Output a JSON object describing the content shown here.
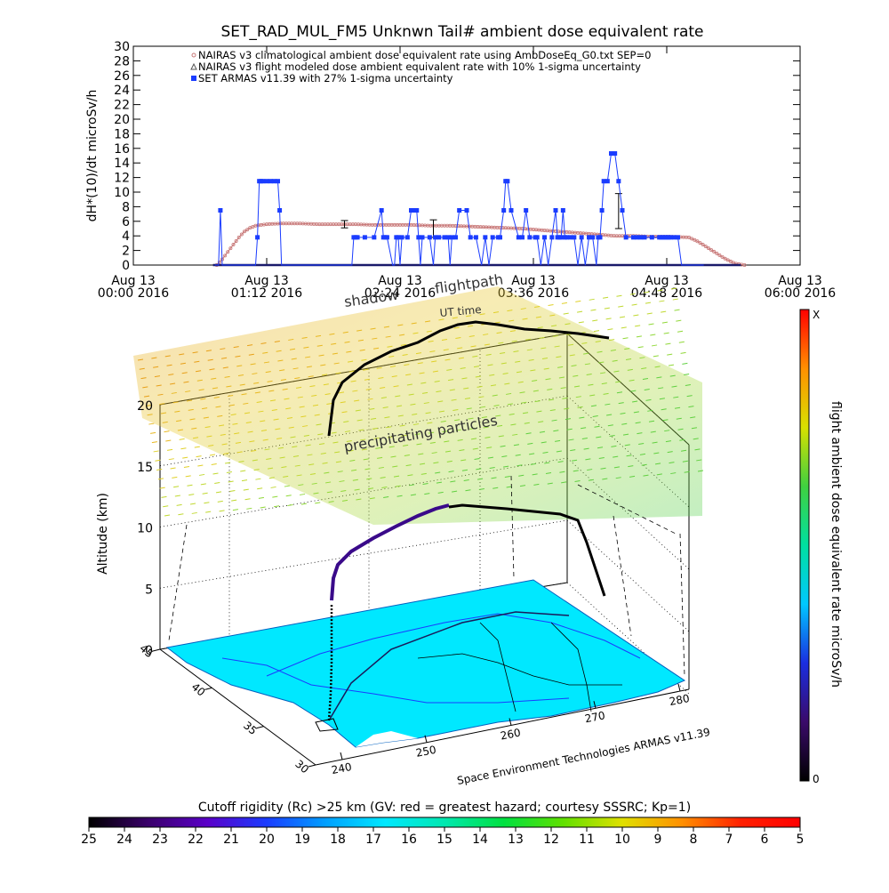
{
  "chart_data": [
    {
      "type": "line",
      "title": "SET_RAD_MUL_FM5 Unknwn Tail#  ambient dose equivalent rate",
      "ylabel": "dH*(10)/dt microSv/h",
      "ylim": [
        0,
        30
      ],
      "y_ticks": [
        "0",
        "2",
        "4",
        "6",
        "8",
        "10",
        "12",
        "14",
        "16",
        "18",
        "20",
        "22",
        "24",
        "26",
        "28",
        "30"
      ],
      "x_ticks": [
        {
          "top": "Aug 13",
          "bottom": "00:00 2016"
        },
        {
          "top": "Aug 13",
          "bottom": "01:12 2016"
        },
        {
          "top": "Aug 13",
          "bottom": "02:24 2016"
        },
        {
          "top": "Aug 13",
          "bottom": "03:36 2016"
        },
        {
          "top": "Aug 13",
          "bottom": "04:48 2016"
        },
        {
          "top": "Aug 13",
          "bottom": "06:00 2016"
        }
      ],
      "xlim_minutes": [
        0,
        360
      ],
      "series": [
        {
          "name": "NAIRAS v3 climatological ambient dose equivalent rate using AmbDoseEq_G0.txt SEP=0",
          "color": "#c87878",
          "marker": "circle",
          "x_minutes": [
            45,
            48,
            51,
            54,
            57,
            60,
            63,
            66,
            69,
            72,
            80,
            90,
            100,
            110,
            120,
            130,
            140,
            150,
            160,
            170,
            180,
            190,
            200,
            210,
            220,
            230,
            240,
            250,
            260,
            270,
            280,
            290,
            300,
            305,
            310,
            315,
            320,
            325,
            330
          ],
          "values": [
            0,
            0.8,
            1.8,
            2.8,
            3.8,
            4.6,
            5.1,
            5.4,
            5.5,
            5.6,
            5.7,
            5.7,
            5.6,
            5.6,
            5.6,
            5.5,
            5.5,
            5.5,
            5.4,
            5.4,
            5.3,
            5.2,
            5.1,
            5.0,
            4.8,
            4.6,
            4.4,
            4.2,
            4.0,
            4.0,
            3.9,
            3.9,
            3.8,
            3.2,
            2.4,
            1.6,
            0.8,
            0.2,
            0
          ]
        },
        {
          "name": "NAIRAS v3 flight modeled dose ambient equivalent rate with 10% 1-sigma uncertainty",
          "color": "#555555",
          "marker": "triangle",
          "x_minutes": [
            43,
            328
          ],
          "values": [
            0,
            0
          ],
          "error_bars": [
            {
              "x_minutes": 114,
              "value": 5.6,
              "err": 0.5
            },
            {
              "x_minutes": 162,
              "value": 5.0,
              "err": 1.2
            },
            {
              "x_minutes": 262,
              "value": 7.4,
              "err": 2.4
            }
          ]
        },
        {
          "name": "SET ARMAS v11.39 with 27% 1-sigma uncertainty",
          "color": "#1a3cff",
          "marker": "square",
          "x_minutes": [
            44,
            46,
            47,
            48,
            50,
            52,
            53,
            66,
            67,
            68,
            69,
            70,
            72,
            74,
            76,
            78,
            79,
            80,
            81,
            118,
            119,
            120,
            121,
            125,
            130,
            134,
            135,
            136,
            137,
            140,
            141,
            142,
            143,
            144,
            145,
            148,
            150,
            152,
            153,
            154,
            155,
            156,
            160,
            162,
            163,
            165,
            168,
            170,
            171,
            172,
            174,
            176,
            180,
            182,
            185,
            188,
            190,
            192,
            194,
            197,
            198,
            200,
            201,
            202,
            204,
            208,
            210,
            212,
            214,
            217,
            218,
            220,
            222,
            224,
            226,
            228,
            229,
            230,
            231,
            232,
            233,
            234,
            236,
            238,
            240,
            242,
            244,
            246,
            248,
            250,
            251,
            252,
            253,
            254,
            256,
            258,
            260,
            262,
            264,
            266,
            270,
            272,
            274,
            276,
            280,
            284,
            285,
            286,
            287,
            288,
            289,
            290,
            292,
            294,
            296,
            298,
            300,
            302,
            304,
            306,
            308
          ],
          "values": [
            0,
            0,
            7.5,
            0,
            0,
            0,
            0,
            0,
            3.8,
            11.5,
            11.5,
            11.5,
            11.5,
            11.5,
            11.5,
            11.5,
            7.5,
            0,
            0,
            0,
            3.8,
            3.8,
            3.8,
            3.8,
            3.8,
            7.5,
            3.8,
            3.8,
            3.8,
            0,
            0,
            3.8,
            3.8,
            0,
            3.8,
            3.8,
            7.5,
            7.5,
            7.5,
            3.8,
            0,
            3.8,
            3.8,
            0,
            3.8,
            3.8,
            3.8,
            3.8,
            0,
            3.8,
            3.8,
            7.5,
            7.5,
            3.8,
            3.8,
            0,
            3.8,
            0,
            3.8,
            3.8,
            3.8,
            7.5,
            11.5,
            11.5,
            7.5,
            3.8,
            3.8,
            7.5,
            3.8,
            3.8,
            3.8,
            0,
            3.8,
            0,
            3.8,
            7.5,
            3.8,
            3.8,
            3.8,
            7.5,
            3.8,
            3.8,
            3.8,
            3.8,
            0,
            3.8,
            0,
            3.8,
            3.8,
            0,
            3.8,
            3.8,
            7.5,
            11.5,
            11.5,
            15.3,
            15.3,
            11.5,
            7.5,
            3.8,
            3.8,
            3.8,
            3.8,
            3.8,
            3.8,
            3.8,
            3.8,
            3.8,
            3.8,
            3.8,
            3.8,
            3.8,
            3.8,
            3.8,
            0,
            0,
            0,
            0,
            0,
            0,
            0
          ]
        }
      ]
    },
    {
      "type": "scatter",
      "subtype": "3d-flight-path",
      "zlabel": "Altitude (km)",
      "z_ticks": [
        "0",
        "5",
        "10",
        "15",
        "20"
      ],
      "zlim": [
        0,
        20
      ],
      "lat_ticks": [
        "30",
        "35",
        "40",
        "45"
      ],
      "lon_ticks": [
        "240",
        "250",
        "260",
        "270",
        "280"
      ],
      "annotations": {
        "shadow": "shadow",
        "flightpath": "flightpath",
        "ut_time": "UT time",
        "precipitating": "precipitating particles",
        "credit": "Space Environment Technologies ARMAS v11.39"
      },
      "right_colorbar": {
        "label": "flight ambient dose equivalent rate microSv/h",
        "top_label": "X",
        "bottom_label": "0",
        "colors": [
          "#000000",
          "#3a0a6a",
          "#1a2ee0",
          "#00c8ff",
          "#00e0a0",
          "#40d040",
          "#d8e000",
          "#ff9000",
          "#ff0000"
        ]
      },
      "bottom_colorbar": {
        "title": "Cutoff rigidity (Rc) >25 km (GV: red = greatest hazard; courtesy SSSRC; Kp=1)",
        "ticks": [
          "25",
          "24",
          "23",
          "22",
          "21",
          "20",
          "19",
          "18",
          "17",
          "16",
          "15",
          "14",
          "13",
          "12",
          "11",
          "10",
          "9",
          "8",
          "7",
          "6",
          "5"
        ],
        "colors": [
          "#000000",
          "#3a006a",
          "#5a00c8",
          "#1a3cff",
          "#00a0ff",
          "#00e8ff",
          "#00e8b0",
          "#00e040",
          "#60e000",
          "#e0e000",
          "#ff9000",
          "#ff2000",
          "#ff0000"
        ]
      }
    }
  ]
}
